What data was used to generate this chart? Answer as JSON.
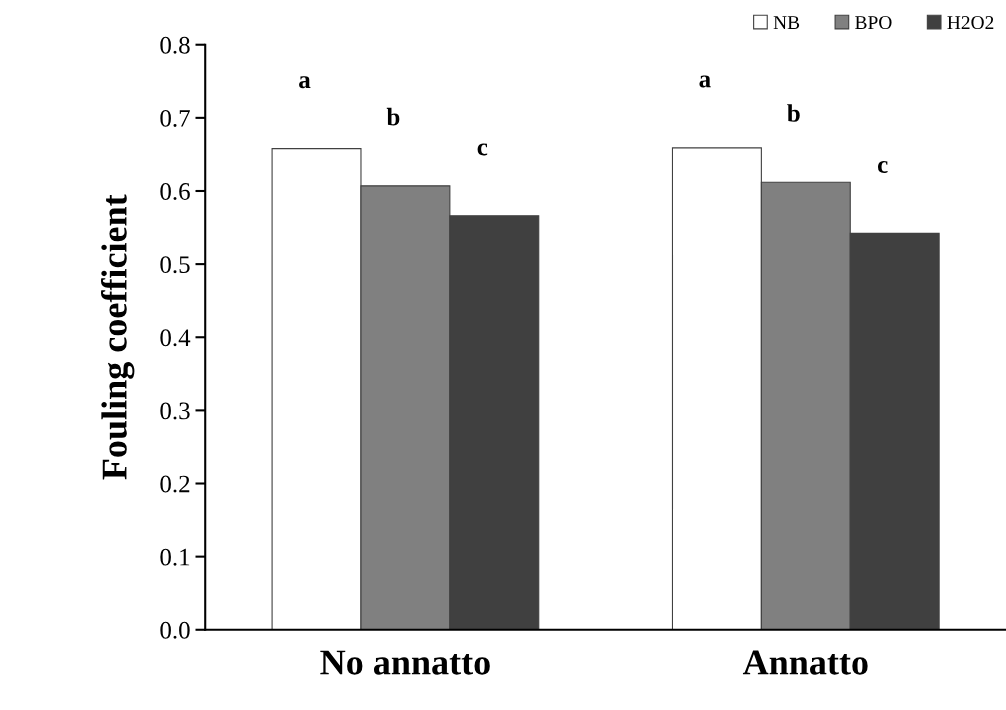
{
  "chart_data": {
    "type": "bar",
    "ylabel": "Fouling coefficient",
    "categories": [
      "No annatto",
      "Annatto"
    ],
    "series": [
      {
        "name": "NB",
        "color": "#ffffff",
        "values": [
          0.658,
          0.659
        ]
      },
      {
        "name": "BPO",
        "color": "#808080",
        "values": [
          0.607,
          0.612
        ]
      },
      {
        "name": "H2O2",
        "color": "#404040",
        "values": [
          0.566,
          0.542
        ]
      }
    ],
    "ylim": [
      0,
      0.8
    ],
    "yticks": [
      {
        "value": 0,
        "label": "0.0"
      },
      {
        "value": 0.1,
        "label": "0.1"
      },
      {
        "value": 0.2,
        "label": "0.2"
      },
      {
        "value": 0.3,
        "label": "0.3"
      },
      {
        "value": 0.4,
        "label": "0.4"
      },
      {
        "value": 0.5,
        "label": "0.5"
      },
      {
        "value": 0.6,
        "label": "0.6"
      },
      {
        "value": 0.7,
        "label": "0.7"
      },
      {
        "value": 0.8,
        "label": "0.8"
      }
    ],
    "annotations": [
      "a",
      "b",
      "c",
      "a",
      "b",
      "c"
    ],
    "grid": false,
    "legend": "top right"
  }
}
